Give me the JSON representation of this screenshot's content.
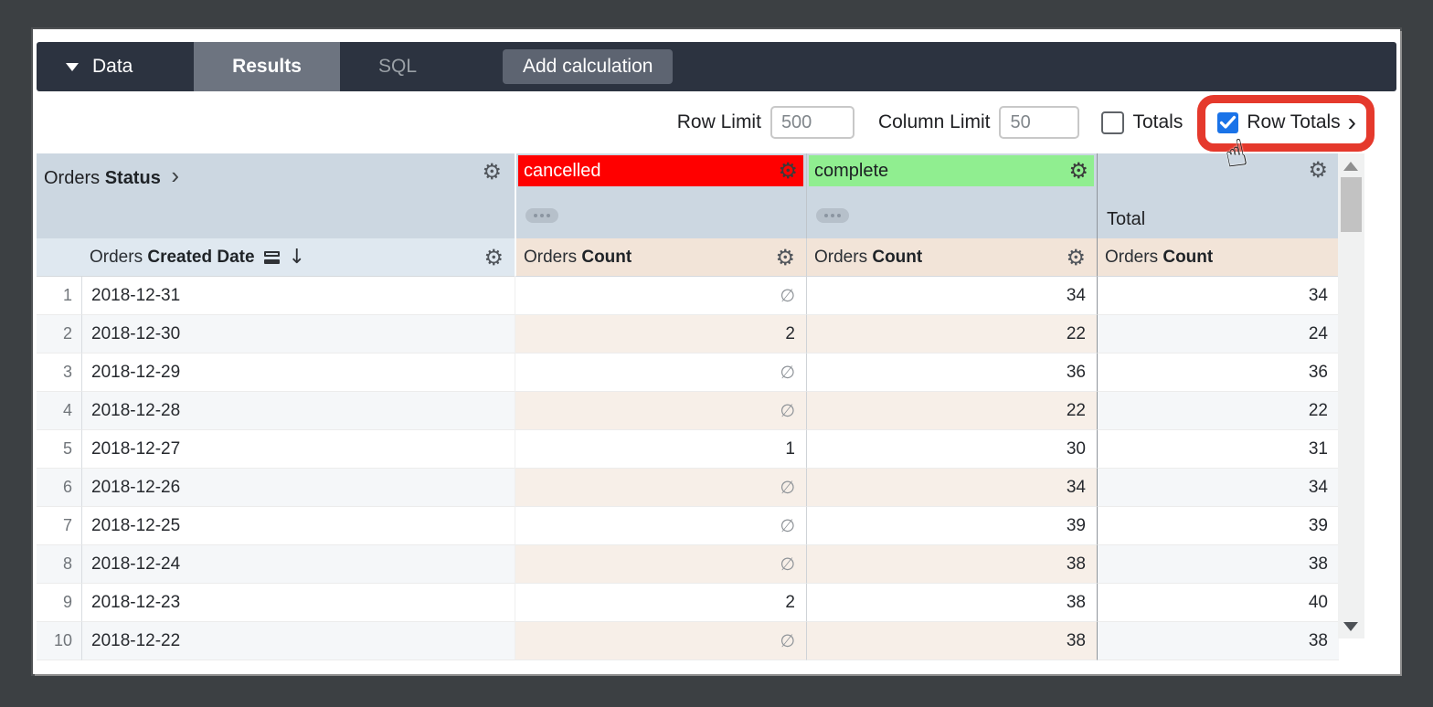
{
  "topbar": {
    "data_label": "Data",
    "results_label": "Results",
    "sql_label": "SQL",
    "add_calculation_label": "Add calculation"
  },
  "controls": {
    "row_limit_label": "Row Limit",
    "row_limit_value": "500",
    "column_limit_label": "Column Limit",
    "column_limit_value": "50",
    "totals_label": "Totals",
    "totals_checked": false,
    "row_totals_label": "Row Totals",
    "row_totals_checked": true,
    "row_totals_chevron": "›"
  },
  "annotation": {
    "highlight_color": "#e5392c",
    "cursor_icon": "click-hand-cursor"
  },
  "colors": {
    "accent_blue": "#1a73e8",
    "cancelled_bg": "#ff0000",
    "complete_bg": "#90ee90",
    "pivot_header_bg": "#ccd7e1",
    "measure_header_bg": "#f2e4d8",
    "topbar_bg": "#2c3340"
  },
  "table": {
    "pivot_dimension": {
      "prefix": "Orders ",
      "name": "Status",
      "chevron": "›"
    },
    "pivot_values": [
      {
        "label": "cancelled"
      },
      {
        "label": "complete"
      }
    ],
    "total_label": "Total",
    "row_dimension": {
      "prefix": "Orders ",
      "name": "Created Date"
    },
    "sort_arrow": "↓",
    "measure": {
      "prefix": "Orders ",
      "name": "Count"
    },
    "null_symbol": "∅",
    "rows": [
      {
        "num": "1",
        "date": "2018-12-31",
        "cancelled": "∅",
        "complete": "34",
        "total": "34"
      },
      {
        "num": "2",
        "date": "2018-12-30",
        "cancelled": "2",
        "complete": "22",
        "total": "24"
      },
      {
        "num": "3",
        "date": "2018-12-29",
        "cancelled": "∅",
        "complete": "36",
        "total": "36"
      },
      {
        "num": "4",
        "date": "2018-12-28",
        "cancelled": "∅",
        "complete": "22",
        "total": "22"
      },
      {
        "num": "5",
        "date": "2018-12-27",
        "cancelled": "1",
        "complete": "30",
        "total": "31"
      },
      {
        "num": "6",
        "date": "2018-12-26",
        "cancelled": "∅",
        "complete": "34",
        "total": "34"
      },
      {
        "num": "7",
        "date": "2018-12-25",
        "cancelled": "∅",
        "complete": "39",
        "total": "39"
      },
      {
        "num": "8",
        "date": "2018-12-24",
        "cancelled": "∅",
        "complete": "38",
        "total": "38"
      },
      {
        "num": "9",
        "date": "2018-12-23",
        "cancelled": "2",
        "complete": "38",
        "total": "40"
      },
      {
        "num": "10",
        "date": "2018-12-22",
        "cancelled": "∅",
        "complete": "38",
        "total": "38"
      }
    ]
  }
}
